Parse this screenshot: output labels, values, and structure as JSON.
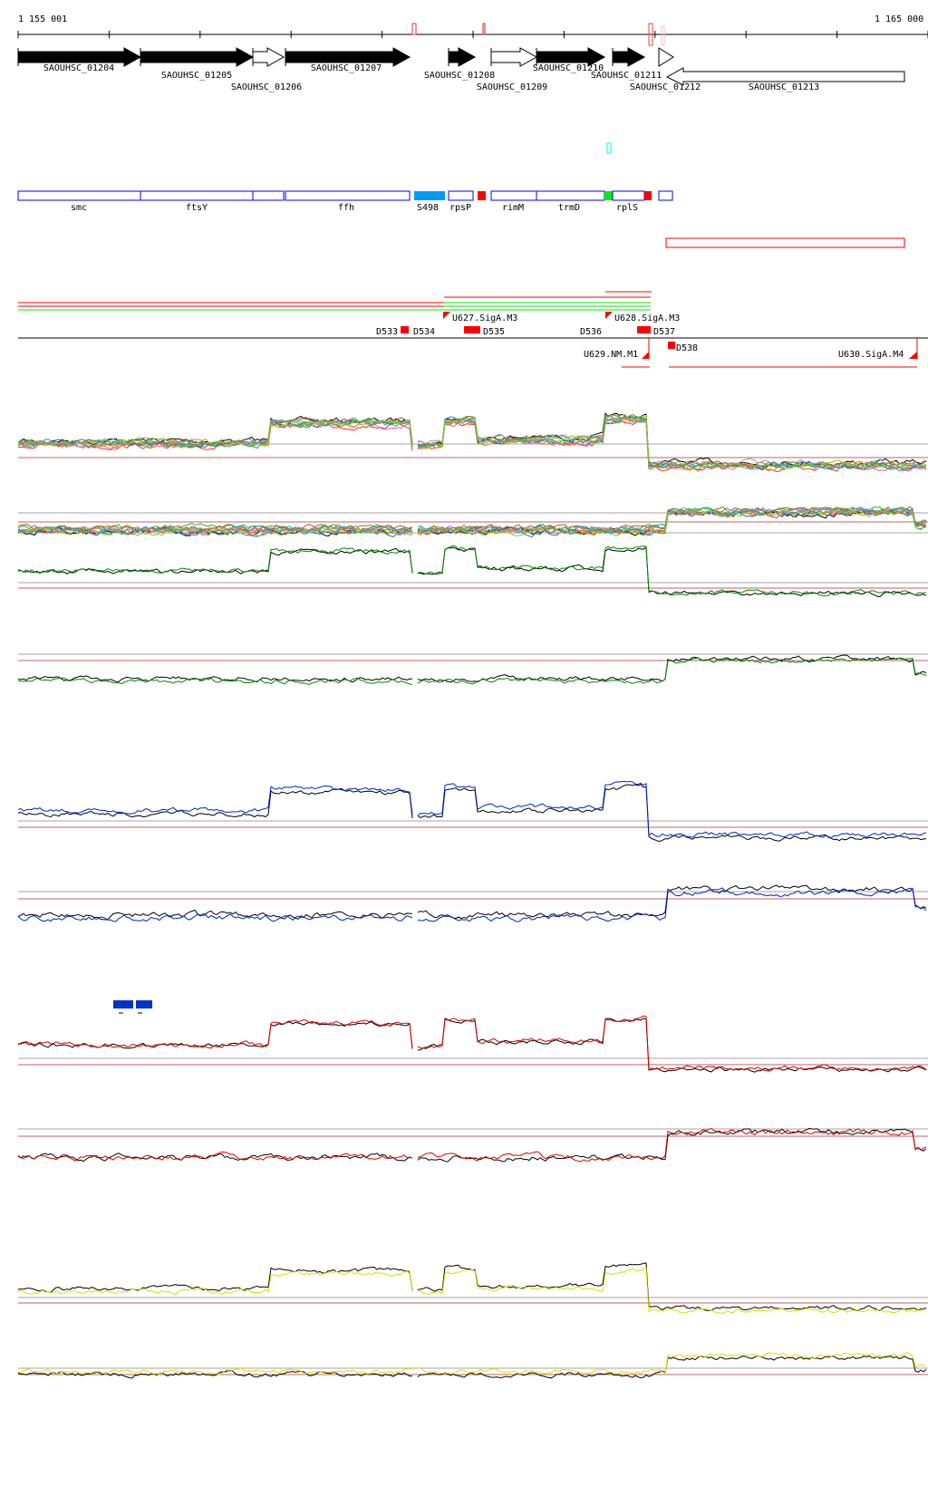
{
  "ruler": {
    "start_label": "1 155 001",
    "end_label": "1 165 000"
  },
  "genes": [
    {
      "label": "SAOUHSC_01204",
      "filled": true
    },
    {
      "label": "SAOUHSC_01205",
      "filled": true
    },
    {
      "label": "SAOUHSC_01206",
      "filled": false
    },
    {
      "label": "SAOUHSC_01207",
      "filled": true
    },
    {
      "label": "SAOUHSC_01208",
      "filled": true
    },
    {
      "label": "SAOUHSC_01209",
      "filled": false
    },
    {
      "label": "SAOUHSC_01210",
      "filled": true
    },
    {
      "label": "SAOUHSC_01211",
      "filled": true
    },
    {
      "label": "SAOUHSC_01212",
      "filled": false
    },
    {
      "label": "SAOUHSC_01213",
      "filled": false
    }
  ],
  "features": [
    "smc",
    "ftsY",
    "ffh",
    "S498",
    "rpsP",
    "rimM",
    "trmD",
    "rplS"
  ],
  "annotations": {
    "d533": "D533",
    "d534": "D534",
    "d535": "D535",
    "d536": "D536",
    "d537": "D537",
    "d538": "D538",
    "u627": "U627.SigA.M3",
    "u628": "U628.SigA.M3",
    "u629": "U629.NM.M1",
    "u630": "U630.SigA.M4"
  },
  "colors": {
    "gene": "#000000",
    "feature_box": "#0000ff",
    "srna": "#0099ff",
    "red": "#ff0000",
    "green": "#00ee00",
    "cyan": "#00ffff",
    "track_green": "#008800",
    "track_blue": "#0022cc",
    "track_red": "#dd0000",
    "track_yellow": "#dddd00",
    "legend_blue": "#0033cc"
  }
}
